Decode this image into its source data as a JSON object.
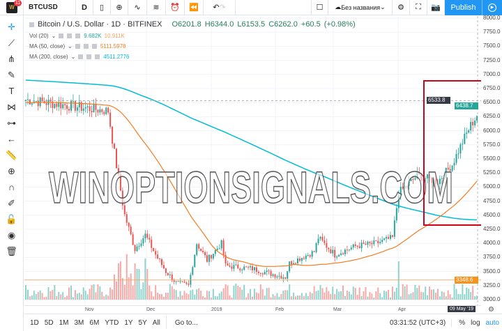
{
  "toolbar": {
    "symbol": "BTCUSD",
    "interval": "D",
    "layout_name": "Без названия",
    "publish": "Publish",
    "notification_count": "11",
    "logo_text": "W"
  },
  "legend": {
    "title": "Bitcoin / U.S. Dollar · 1D · BITFINEX",
    "open": "O6201.8",
    "high": "H6344.0",
    "low": "L6153.5",
    "close": "C6262.0",
    "change": "+60.5 (+0.98%)",
    "indicators": [
      {
        "name": "Vol (20)",
        "v1": "9.682K",
        "v2": "10.911K"
      },
      {
        "name": "MA (50, close)",
        "v1": "5111.5978"
      },
      {
        "name": "MA (200, close)",
        "v1": "4511.2776"
      }
    ]
  },
  "colors": {
    "up": "#26a69a",
    "down": "#ef5350",
    "ma50": "#f57c1f",
    "ma200": "#00bcd4",
    "accent": "#2196f3",
    "highlight_box": "#d0021b"
  },
  "price_axis": {
    "ticks": [
      "8000.0",
      "7750.0",
      "7500.0",
      "7250.0",
      "7000.0",
      "6750.0",
      "6500.0",
      "6250.0",
      "6000.0",
      "5750.0",
      "5500.0",
      "5250.0",
      "5000.0",
      "4750.0",
      "4500.0",
      "4250.0",
      "4000.0",
      "3750.0",
      "3500.0",
      "3250.0",
      "3000.0"
    ],
    "crosshair_label": "6533.8",
    "last_price_label": "6438.7",
    "line_label": "3348.6"
  },
  "time_axis": {
    "labels": [
      "Nov",
      "Dec",
      "2019",
      "Feb",
      "Mar",
      "Apr"
    ],
    "crosshair_label": "09 May '19"
  },
  "watermark": "WINOPTIONSIGNALS.COM",
  "bottom": {
    "ranges": [
      "1D",
      "5D",
      "1M",
      "3M",
      "6M",
      "YTD",
      "1Y",
      "5Y",
      "All"
    ],
    "goto": "Go to...",
    "clock": "03:31:52 (UTC+3)",
    "percent": "%",
    "log": "log",
    "auto": "auto"
  },
  "chart_data": {
    "type": "candlestick",
    "ylim": [
      3000,
      8000
    ],
    "close_keypoints": [
      [
        0,
        6550
      ],
      [
        10,
        6500
      ],
      [
        20,
        6450
      ],
      [
        30,
        6400
      ],
      [
        40,
        6350
      ],
      [
        43,
        5600
      ],
      [
        48,
        4500
      ],
      [
        53,
        3900
      ],
      [
        58,
        4150
      ],
      [
        63,
        3800
      ],
      [
        68,
        3500
      ],
      [
        73,
        3300
      ],
      [
        79,
        3250
      ],
      [
        83,
        4000
      ],
      [
        88,
        3700
      ],
      [
        95,
        4000
      ],
      [
        97,
        3600
      ],
      [
        110,
        3550
      ],
      [
        120,
        3450
      ],
      [
        126,
        3400
      ],
      [
        128,
        3650
      ],
      [
        140,
        3850
      ],
      [
        142,
        4100
      ],
      [
        150,
        3800
      ],
      [
        160,
        3950
      ],
      [
        170,
        4000
      ],
      [
        178,
        4100
      ],
      [
        181,
        4900
      ],
      [
        190,
        5200
      ],
      [
        200,
        5100
      ],
      [
        207,
        5400
      ],
      [
        212,
        5800
      ],
      [
        216,
        6100
      ],
      [
        219,
        6262
      ]
    ]
  }
}
